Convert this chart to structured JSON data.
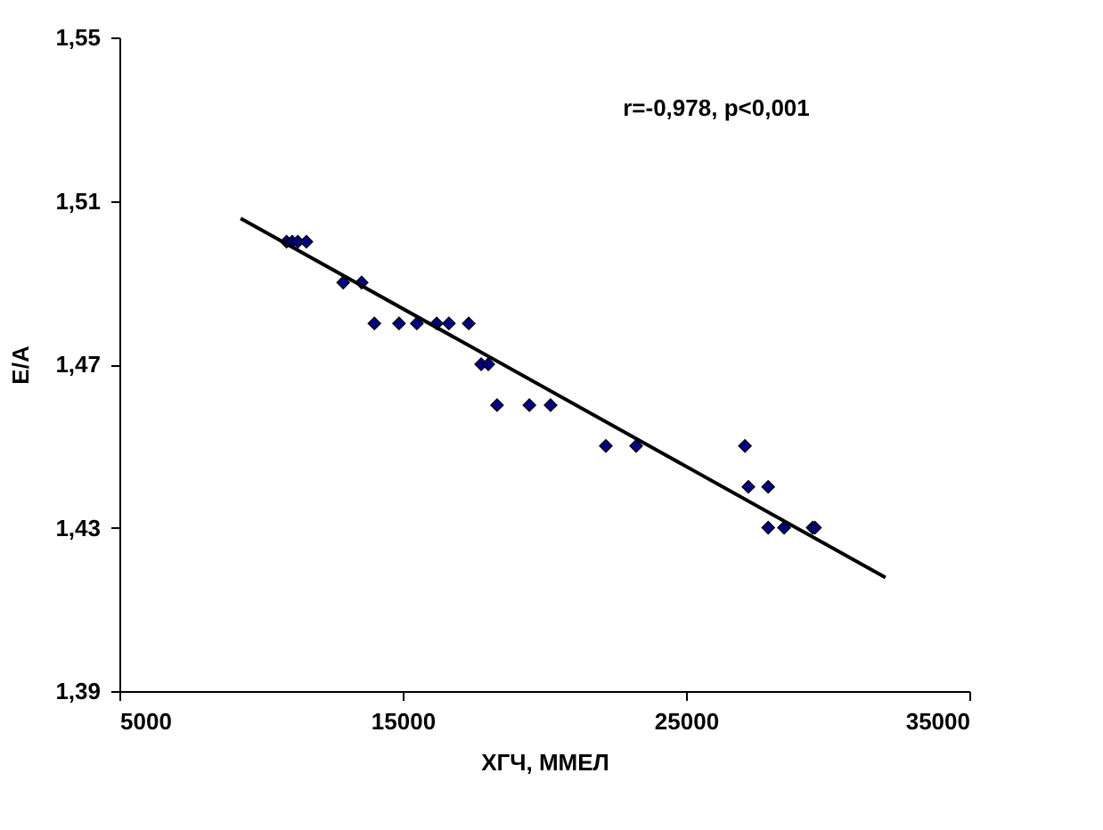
{
  "chart_data": {
    "type": "scatter",
    "xlabel": "ХГЧ, ММЕЛ",
    "ylabel": "E/A",
    "annotations": [
      "r=-0,978, p<0,001"
    ],
    "xlim": [
      5000,
      35000
    ],
    "xticks": [
      5000,
      15000,
      25000,
      35000
    ],
    "ylim": [
      1.39,
      1.55
    ],
    "yticks": [
      {
        "value": 1.39,
        "label": "1,39"
      },
      {
        "value": 1.43,
        "label": "1,43"
      },
      {
        "value": 1.47,
        "label": "1,47"
      },
      {
        "value": 1.51,
        "label": "1,51"
      },
      {
        "value": 1.55,
        "label": "1,55"
      }
    ],
    "grid": false,
    "legend": false,
    "marker": "diamond",
    "series": [
      {
        "color": "#000080",
        "x": [
          10900,
          11100,
          11300,
          11600,
          12900,
          13550,
          14000,
          14870,
          15500,
          16200,
          16630,
          17330,
          17770,
          18020,
          18330,
          19470,
          20220,
          22170,
          23240,
          27080,
          27200,
          27900,
          27900,
          28460,
          29470,
          29550
        ],
        "values": [
          1.5,
          1.5,
          1.5,
          1.5,
          1.49,
          1.49,
          1.48,
          1.48,
          1.48,
          1.48,
          1.48,
          1.48,
          1.47,
          1.47,
          1.46,
          1.46,
          1.46,
          1.45,
          1.45,
          1.45,
          1.44,
          1.44,
          1.43,
          1.43,
          1.43,
          1.43
        ]
      },
      {
        "type": "line",
        "color": "#000000",
        "marker": "none",
        "line_style": "solid",
        "x": [
          9280,
          32040
        ],
        "values": [
          1.5057,
          1.4178
        ]
      }
    ]
  }
}
